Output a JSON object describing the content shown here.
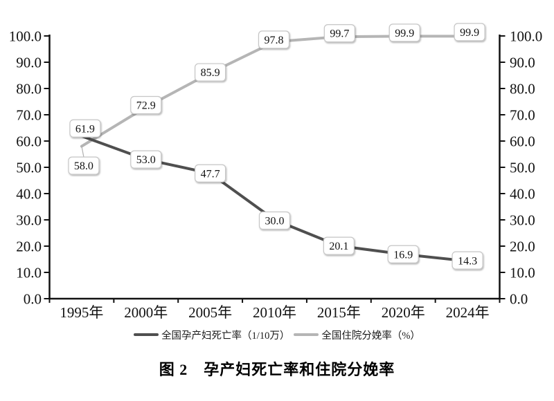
{
  "figure": {
    "caption": "图 2　孕产妇死亡率和住院分娩率"
  },
  "chart_data": {
    "type": "line",
    "title": "图 2　孕产妇死亡率和住院分娩率",
    "categories": [
      "1995年",
      "2000年",
      "2005年",
      "2010年",
      "2015年",
      "2020年",
      "2024年"
    ],
    "series": [
      {
        "name": "全国孕产妇死亡率（1/10万）",
        "color": "#4f4f4f",
        "values": [
          61.9,
          53.0,
          47.7,
          30.0,
          20.1,
          16.9,
          14.3
        ],
        "data_labels": [
          "61.9",
          "53.0",
          "47.7",
          "30.0",
          "20.1",
          "16.9",
          "14.3"
        ]
      },
      {
        "name": "全国住院分娩率（%）",
        "color": "#b5b5b5",
        "values": [
          58.0,
          72.9,
          85.9,
          97.8,
          99.7,
          99.9,
          99.9
        ],
        "data_labels": [
          "58.0",
          "72.9",
          "85.9",
          "97.8",
          "99.7",
          "99.9",
          "99.9"
        ]
      }
    ],
    "y_axis": {
      "min": 0,
      "max": 100,
      "step": 10,
      "tick_labels": [
        "0.0",
        "10.0",
        "20.0",
        "30.0",
        "40.0",
        "50.0",
        "60.0",
        "70.0",
        "80.0",
        "90.0",
        "100.0"
      ],
      "left_axis": true,
      "right_axis": true
    },
    "grid": "off",
    "legend_position": "bottom",
    "data_labels_boxed": true,
    "colors": {
      "axis": "#111111",
      "label_box_fill": "#ffffff",
      "label_box_border": "#c6c6c6",
      "label_text": "#111111"
    }
  }
}
